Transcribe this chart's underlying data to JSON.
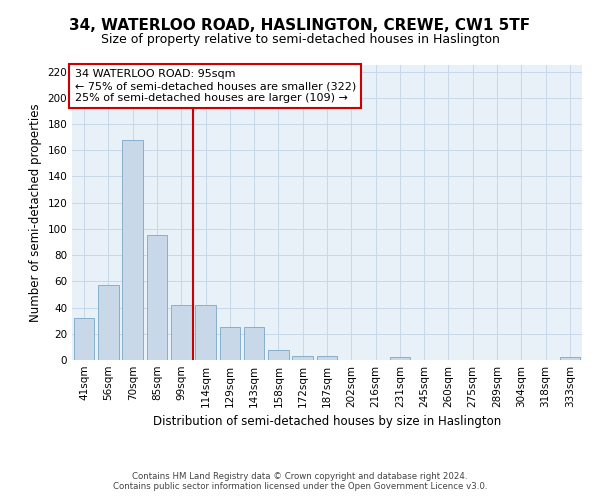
{
  "title": "34, WATERLOO ROAD, HASLINGTON, CREWE, CW1 5TF",
  "subtitle": "Size of property relative to semi-detached houses in Haslington",
  "xlabel": "Distribution of semi-detached houses by size in Haslington",
  "ylabel": "Number of semi-detached properties",
  "footer_line1": "Contains HM Land Registry data © Crown copyright and database right 2024.",
  "footer_line2": "Contains public sector information licensed under the Open Government Licence v3.0.",
  "categories": [
    "41sqm",
    "56sqm",
    "70sqm",
    "85sqm",
    "99sqm",
    "114sqm",
    "129sqm",
    "143sqm",
    "158sqm",
    "172sqm",
    "187sqm",
    "202sqm",
    "216sqm",
    "231sqm",
    "245sqm",
    "260sqm",
    "275sqm",
    "289sqm",
    "304sqm",
    "318sqm",
    "333sqm"
  ],
  "values": [
    32,
    57,
    168,
    95,
    42,
    42,
    25,
    25,
    8,
    3,
    3,
    0,
    0,
    2,
    0,
    0,
    0,
    0,
    0,
    0,
    2
  ],
  "bar_color": "#c8d8e8",
  "bar_edge_color": "#7aa8c8",
  "property_label": "34 WATERLOO ROAD: 95sqm",
  "annotation_line1": "← 75% of semi-detached houses are smaller (322)",
  "annotation_line2": "25% of semi-detached houses are larger (109) →",
  "vline_color": "#cc0000",
  "vline_position": 4.5,
  "annotation_box_color": "#cc0000",
  "ylim": [
    0,
    225
  ],
  "yticks": [
    0,
    20,
    40,
    60,
    80,
    100,
    120,
    140,
    160,
    180,
    200,
    220
  ],
  "grid_color": "#c8d8e8",
  "background_color": "#e8f0f8",
  "title_fontsize": 11,
  "subtitle_fontsize": 9,
  "xlabel_fontsize": 8.5,
  "ylabel_fontsize": 8.5,
  "annotation_fontsize": 8,
  "tick_fontsize": 7.5
}
